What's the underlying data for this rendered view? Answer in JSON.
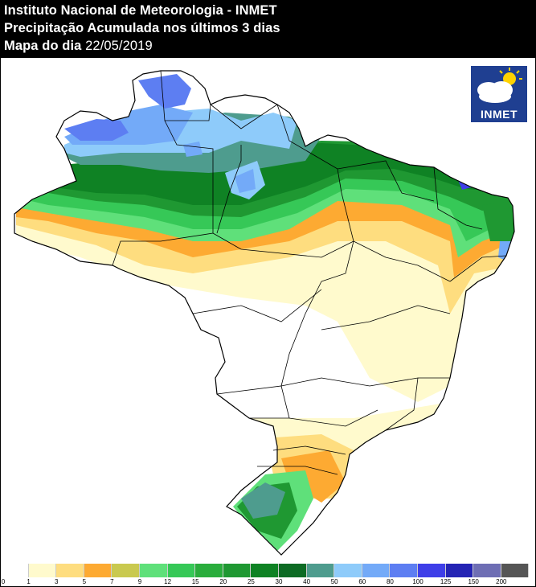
{
  "header": {
    "line1": "Instituto Nacional de Meteorologia - INMET",
    "line2": "Precipitação Acumulada nos últimos 3 dias",
    "line3_label": "Mapa do dia ",
    "line3_date": "22/05/2019"
  },
  "logo": {
    "text": "INMET",
    "icon": "cloud-sun-icon"
  },
  "legend": {
    "ticks": [
      "0",
      "1",
      "3",
      "5",
      "7",
      "9",
      "12",
      "15",
      "20",
      "25",
      "30",
      "40",
      "50",
      "60",
      "80",
      "100",
      "125",
      "150",
      "200"
    ],
    "colors": [
      "#ffffff",
      "#fffacd",
      "#fedd7f",
      "#fdaa32",
      "#c9c94f",
      "#5fe07a",
      "#36c857",
      "#2aad3c",
      "#1f9832",
      "#0f8224",
      "#0d6b24",
      "#4e9c8e",
      "#8ecbfa",
      "#73aaf8",
      "#5d7ef2",
      "#3e3ee8",
      "#2424b4",
      "#6e6eb4",
      "#555555"
    ]
  },
  "colors": {
    "c1": "#fffacd",
    "c3": "#fedd7f",
    "c5": "#fdaa32",
    "c9": "#5fe07a",
    "c12": "#36c857",
    "c20": "#1f9832",
    "c25": "#0f8224",
    "c40": "#4e9c8e",
    "c50": "#8ecbfa",
    "c60": "#73aaf8",
    "c80": "#5d7ef2",
    "c100": "#3e3ee8"
  }
}
